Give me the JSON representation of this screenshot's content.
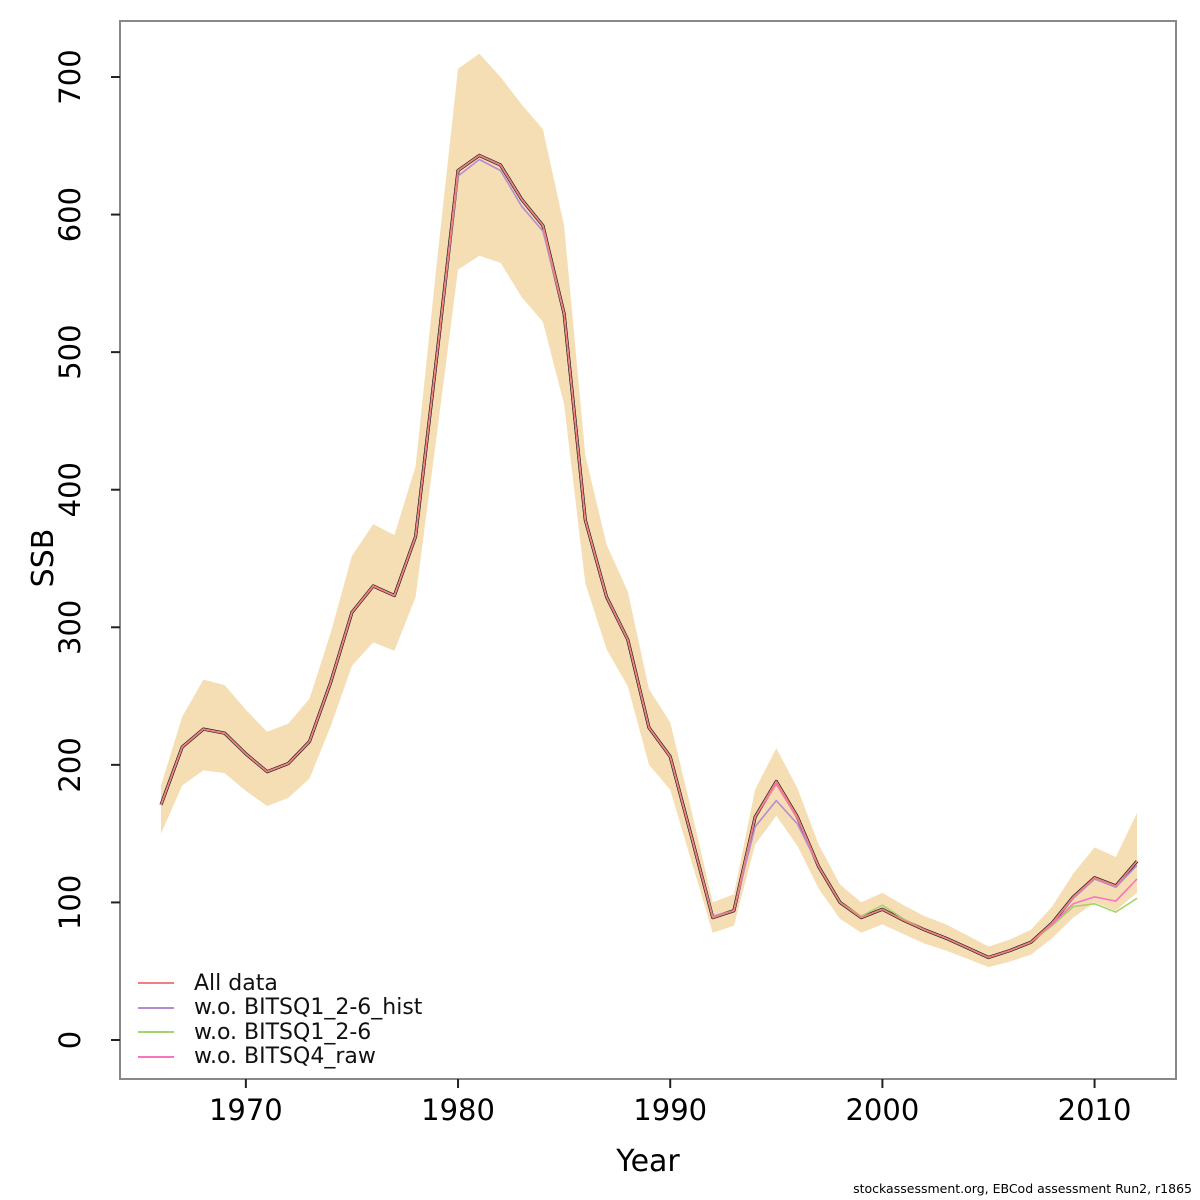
{
  "footer": {
    "text": "stockassessment.org, EBCod assessment Run2, r1865"
  },
  "chart_data": {
    "type": "line",
    "title": "",
    "xlabel": "Year",
    "ylabel": "SSB",
    "grid": false,
    "legend_position": "bottom-left",
    "xlim": [
      1966,
      2012
    ],
    "ylim": [
      0,
      700
    ],
    "xticks": [
      1970,
      1980,
      1990,
      2000,
      2010
    ],
    "yticks": [
      0,
      100,
      200,
      300,
      400,
      500,
      600,
      700
    ],
    "x": [
      1966,
      1967,
      1968,
      1969,
      1970,
      1971,
      1972,
      1973,
      1974,
      1975,
      1976,
      1977,
      1978,
      1979,
      1980,
      1981,
      1982,
      1983,
      1984,
      1985,
      1986,
      1987,
      1988,
      1989,
      1990,
      1991,
      1992,
      1993,
      1994,
      1995,
      1996,
      1997,
      1998,
      1999,
      2000,
      2001,
      2002,
      2003,
      2004,
      2005,
      2006,
      2007,
      2008,
      2009,
      2010,
      2011,
      2012
    ],
    "band": {
      "name": "confidence-band",
      "color": "#f5deb3",
      "lower": [
        150,
        185,
        196,
        194,
        181,
        170,
        176,
        190,
        228,
        272,
        289,
        283,
        322,
        440,
        560,
        570,
        565,
        540,
        522,
        462,
        332,
        284,
        257,
        200,
        182,
        130,
        78,
        83,
        142,
        163,
        141,
        110,
        88,
        78,
        84,
        77,
        70,
        65,
        59,
        53,
        57,
        62,
        74,
        89,
        100,
        94,
        107
      ],
      "upper": [
        185,
        235,
        262,
        258,
        240,
        224,
        230,
        248,
        296,
        352,
        375,
        367,
        417,
        565,
        706,
        717,
        700,
        680,
        662,
        592,
        425,
        360,
        326,
        255,
        231,
        167,
        100,
        106,
        182,
        212,
        183,
        142,
        113,
        100,
        107,
        98,
        90,
        84,
        76,
        68,
        73,
        80,
        97,
        121,
        140,
        133,
        165
      ]
    },
    "base_line_color": "#1a1a1a",
    "series": [
      {
        "name": "All data",
        "color": "#f08080",
        "values": [
          171,
          213,
          226,
          223,
          208,
          195,
          201,
          217,
          260,
          311,
          330,
          323,
          366,
          497,
          632,
          643,
          636,
          611,
          592,
          528,
          378,
          322,
          291,
          227,
          206,
          148,
          89,
          94,
          162,
          188,
          162,
          126,
          100,
          89,
          95,
          87,
          80,
          74,
          67,
          60,
          65,
          71,
          85,
          104,
          118,
          112,
          130
        ]
      },
      {
        "name": "w.o. BITSQ1_2-6_hist",
        "color": "#b48cd2",
        "values": [
          171,
          213,
          226,
          223,
          208,
          195,
          201,
          217,
          260,
          311,
          330,
          323,
          366,
          497,
          628,
          640,
          632,
          606,
          588,
          528,
          378,
          322,
          291,
          227,
          206,
          148,
          90,
          94,
          155,
          174,
          157,
          126,
          100,
          89,
          95,
          87,
          80,
          74,
          67,
          60,
          65,
          71,
          85,
          103,
          117,
          111,
          127
        ]
      },
      {
        "name": "w.o. BITSQ1_2-6",
        "color": "#a5d46a",
        "values": [
          171,
          213,
          226,
          223,
          208,
          195,
          201,
          217,
          260,
          311,
          330,
          323,
          366,
          497,
          632,
          643,
          636,
          611,
          592,
          528,
          378,
          322,
          291,
          227,
          206,
          148,
          89,
          94,
          162,
          188,
          162,
          126,
          100,
          90,
          98,
          88,
          80,
          74,
          67,
          60,
          65,
          71,
          83,
          97,
          99,
          93,
          103
        ]
      },
      {
        "name": "w.o. BITSQ4_raw",
        "color": "#f973c0",
        "values": [
          171,
          213,
          226,
          223,
          208,
          195,
          201,
          217,
          260,
          311,
          330,
          323,
          366,
          497,
          632,
          643,
          636,
          611,
          592,
          528,
          378,
          322,
          291,
          227,
          206,
          148,
          89,
          94,
          162,
          186,
          161,
          126,
          100,
          89,
          95,
          87,
          80,
          74,
          67,
          60,
          65,
          71,
          84,
          99,
          104,
          101,
          117
        ]
      }
    ]
  }
}
